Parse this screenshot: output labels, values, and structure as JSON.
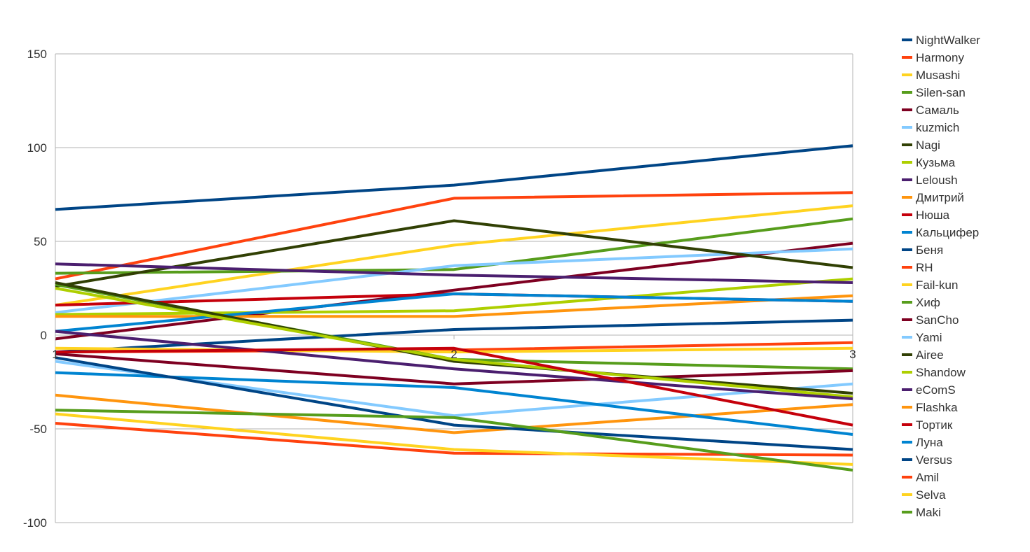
{
  "chart_data": {
    "type": "line",
    "title": "",
    "xlabel": "",
    "ylabel": "",
    "x": [
      1,
      2,
      3
    ],
    "xlim": [
      1,
      3
    ],
    "ylim": [
      -100,
      150
    ],
    "yticks": [
      150,
      100,
      50,
      0,
      -50,
      -100
    ],
    "grid": "horizontal",
    "legend": "right",
    "series": [
      {
        "name": "NightWalker",
        "color": "#004586",
        "values": [
          67,
          80,
          101
        ]
      },
      {
        "name": "Harmony",
        "color": "#ff420e",
        "values": [
          30,
          73,
          76
        ]
      },
      {
        "name": "Musashi",
        "color": "#ffd320",
        "values": [
          16,
          48,
          69
        ]
      },
      {
        "name": "Silen-san",
        "color": "#579d1c",
        "values": [
          33,
          35,
          62
        ]
      },
      {
        "name": "Самаль",
        "color": "#7e0021",
        "values": [
          -2,
          24,
          49
        ]
      },
      {
        "name": "kuzmich",
        "color": "#83caff",
        "values": [
          12,
          37,
          46
        ]
      },
      {
        "name": "Nagi",
        "color": "#314004",
        "values": [
          26,
          61,
          36
        ]
      },
      {
        "name": "Кузьма",
        "color": "#aecf00",
        "values": [
          11,
          13,
          30
        ]
      },
      {
        "name": "Leloush",
        "color": "#4b1f6f",
        "values": [
          38,
          32,
          28
        ]
      },
      {
        "name": "Дмитрий",
        "color": "#ff950e",
        "values": [
          10,
          10,
          21
        ]
      },
      {
        "name": "Нюша",
        "color": "#c5000b",
        "values": [
          16,
          22,
          18
        ]
      },
      {
        "name": "Кальцифер",
        "color": "#0084d1",
        "values": [
          2,
          22,
          18
        ]
      },
      {
        "name": "Беня",
        "color": "#004586",
        "values": [
          -9,
          3,
          8
        ]
      },
      {
        "name": "RH",
        "color": "#ff420e",
        "values": [
          -9,
          -8,
          -4
        ]
      },
      {
        "name": "Fail-kun",
        "color": "#ffd320",
        "values": [
          -7,
          -9,
          -7
        ]
      },
      {
        "name": "Хиф",
        "color": "#579d1c",
        "values": [
          27,
          -13,
          -18
        ]
      },
      {
        "name": "SanCho",
        "color": "#7e0021",
        "values": [
          -10,
          -26,
          -19
        ]
      },
      {
        "name": "Yami",
        "color": "#83caff",
        "values": [
          -14,
          -43,
          -26
        ]
      },
      {
        "name": "Airee",
        "color": "#314004",
        "values": [
          28,
          -14,
          -31
        ]
      },
      {
        "name": "Shandow",
        "color": "#aecf00",
        "values": [
          25,
          -13,
          -33
        ]
      },
      {
        "name": "eComS",
        "color": "#4b1f6f",
        "values": [
          2,
          -18,
          -34
        ]
      },
      {
        "name": "Flashka",
        "color": "#ff950e",
        "values": [
          -32,
          -52,
          -37
        ]
      },
      {
        "name": "Тортик",
        "color": "#c5000b",
        "values": [
          -9,
          -7,
          -48
        ]
      },
      {
        "name": "Луна",
        "color": "#0084d1",
        "values": [
          -20,
          -28,
          -53
        ]
      },
      {
        "name": "Versus",
        "color": "#004586",
        "values": [
          -12,
          -48,
          -61
        ]
      },
      {
        "name": "Amil",
        "color": "#ff420e",
        "values": [
          -47,
          -63,
          -64
        ]
      },
      {
        "name": "Selva",
        "color": "#ffd320",
        "values": [
          -42,
          -61,
          -69
        ]
      },
      {
        "name": "Maki",
        "color": "#579d1c",
        "values": [
          -40,
          -44,
          -72
        ]
      }
    ]
  }
}
